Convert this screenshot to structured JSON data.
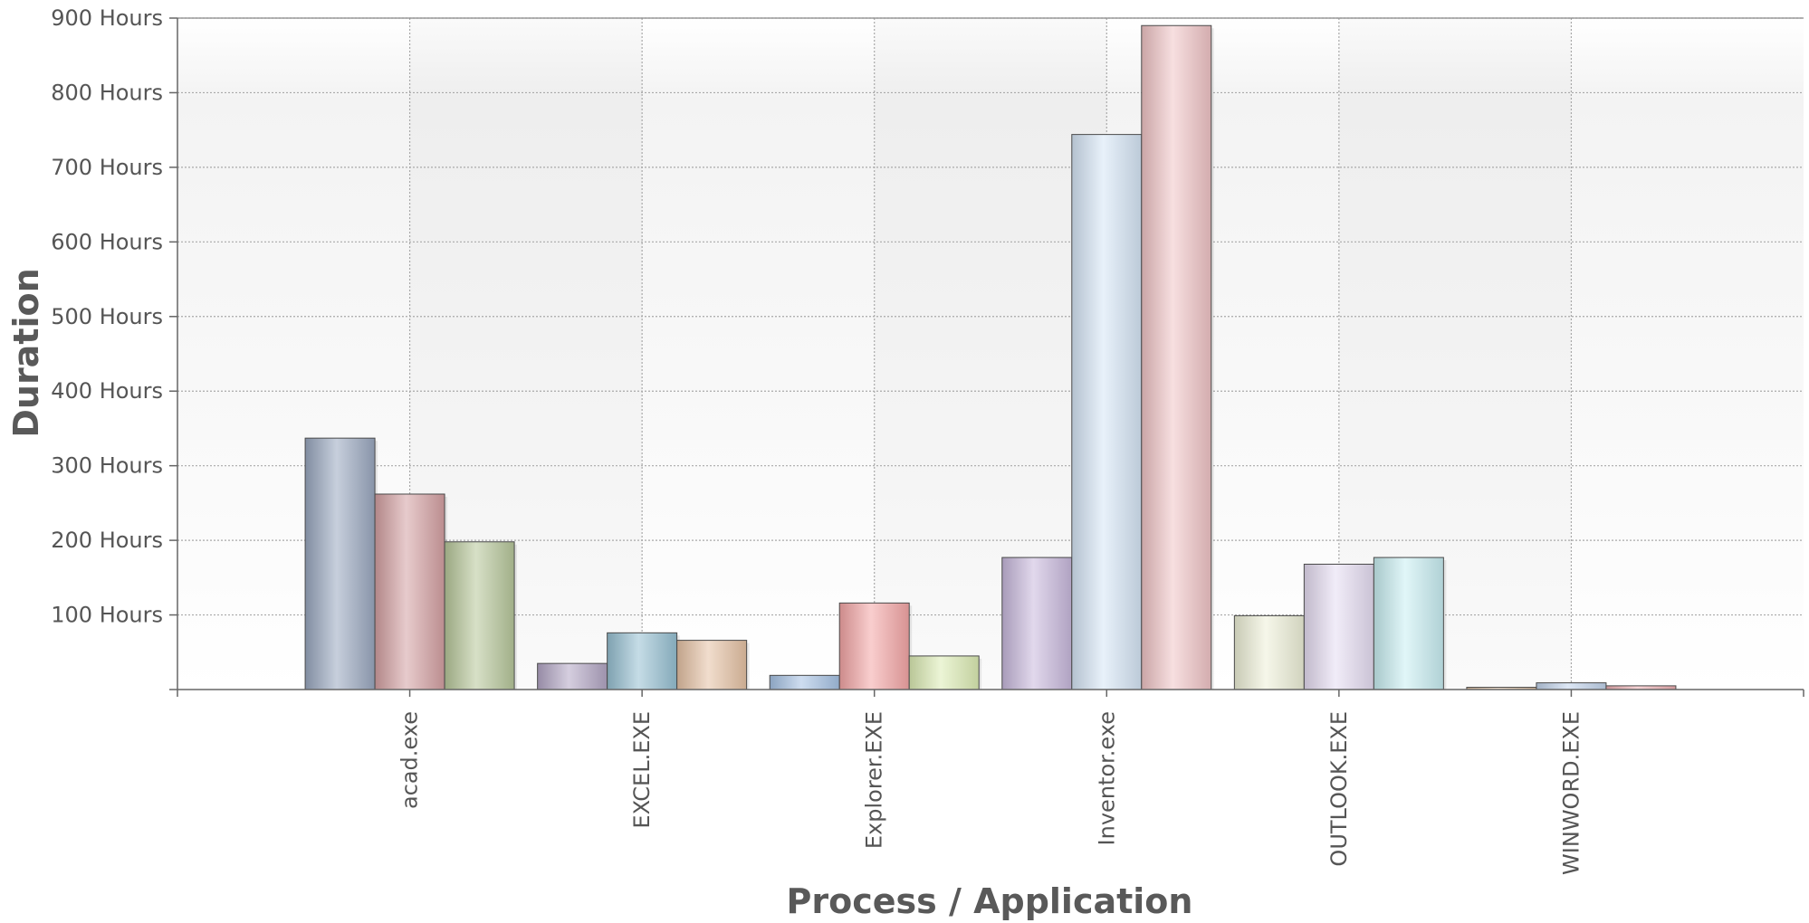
{
  "chart_data": {
    "type": "bar",
    "title": "",
    "xlabel": "Process / Application",
    "ylabel": "Duration",
    "ylim": [
      0,
      900
    ],
    "y_ticks": [
      {
        "value": 100,
        "label": "100 Hours"
      },
      {
        "value": 200,
        "label": "200 Hours"
      },
      {
        "value": 300,
        "label": "300 Hours"
      },
      {
        "value": 400,
        "label": "400 Hours"
      },
      {
        "value": 500,
        "label": "500 Hours"
      },
      {
        "value": 600,
        "label": "600 Hours"
      },
      {
        "value": 700,
        "label": "700 Hours"
      },
      {
        "value": 800,
        "label": "800 Hours"
      },
      {
        "value": 900,
        "label": "900 Hours"
      }
    ],
    "grid": true,
    "legend": "none",
    "categories": [
      "acad.exe",
      "EXCEL.EXE",
      "Explorer.EXE",
      "Inventor.exe",
      "OUTLOOK.EXE",
      "WINWORD.EXE"
    ],
    "groups": [
      {
        "category": "acad.exe",
        "values": [
          337,
          262,
          198
        ],
        "colors": [
          "#9aa8c0",
          "#d4a0a2",
          "#b7c79a"
        ]
      },
      {
        "category": "EXCEL.EXE",
        "values": [
          35,
          76,
          66
        ],
        "colors": [
          "#b2a6c4",
          "#96c0d2",
          "#e6c2a4"
        ]
      },
      {
        "category": "Explorer.EXE",
        "values": [
          19,
          116,
          45
        ],
        "colors": [
          "#a6c2e4",
          "#f4a6a6",
          "#dcecb4"
        ]
      },
      {
        "category": "Inventor.exe",
        "values": [
          177,
          744,
          890
        ],
        "colors": [
          "#c8b8dc",
          "#d6e6f6",
          "#f0c4c6"
        ]
      },
      {
        "category": "OUTLOOK.EXE",
        "values": [
          99,
          168,
          177
        ],
        "colors": [
          "#eef0d8",
          "#e6dcf2",
          "#c8eef2"
        ]
      },
      {
        "category": "WINWORD.EXE",
        "values": [
          3,
          9,
          5
        ],
        "colors": [
          "#e8c8a8",
          "#c2d4ec",
          "#f0b0b4"
        ]
      }
    ]
  }
}
